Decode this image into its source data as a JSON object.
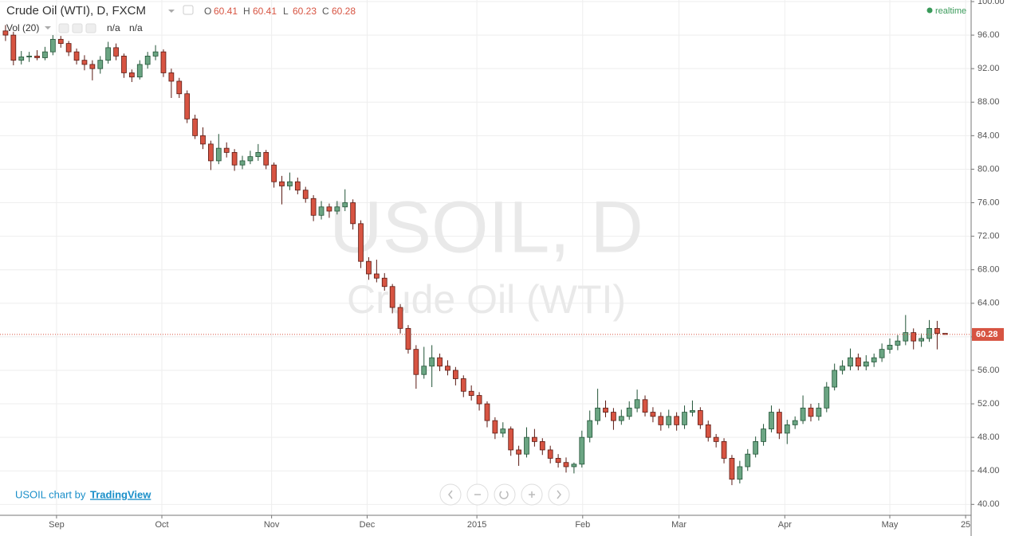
{
  "chart_data": {
    "type": "candlestick",
    "title": "Crude Oil (WTI), D, FXCM",
    "indicator": {
      "name": "Vol (20)",
      "values": [
        "n/a",
        "n/a"
      ]
    },
    "ohlc_labels": [
      "O",
      "H",
      "L",
      "C"
    ],
    "status": "realtime",
    "watermark": {
      "symbol": "USOIL, D",
      "name": "Crude Oil (WTI)"
    },
    "credit": {
      "text": "USOIL chart by",
      "link": "TradingView"
    },
    "up_color": "#6ba583",
    "down_color": "#d75442",
    "ylim": [
      38.7,
      100.19
    ],
    "yticks": [
      {
        "value": 40,
        "label": "40.00"
      },
      {
        "value": 44,
        "label": "44.00"
      },
      {
        "value": 48,
        "label": "48.00"
      },
      {
        "value": 52,
        "label": "52.00"
      },
      {
        "value": 56,
        "label": "56.00"
      },
      {
        "value": 60,
        "label": "60.00"
      },
      {
        "value": 64,
        "label": "64.00"
      },
      {
        "value": 68,
        "label": "68.00"
      },
      {
        "value": 72,
        "label": "72.00"
      },
      {
        "value": 76,
        "label": "76.00"
      },
      {
        "value": 80,
        "label": "80.00"
      },
      {
        "value": 84,
        "label": "84.00"
      },
      {
        "value": 88,
        "label": "88.00"
      },
      {
        "value": 92,
        "label": "92.00"
      },
      {
        "value": 96,
        "label": "96.00"
      },
      {
        "value": 100,
        "label": "100.00"
      }
    ],
    "xlim": [
      -0.7,
      122.3
    ],
    "xticks": [
      {
        "value": 6.46,
        "label": "Sep"
      },
      {
        "value": 19.8,
        "label": "Oct"
      },
      {
        "value": 33.7,
        "label": "Nov"
      },
      {
        "value": 45.8,
        "label": "Dec"
      },
      {
        "value": 59.7,
        "label": "2015"
      },
      {
        "value": 73.1,
        "label": "Feb"
      },
      {
        "value": 85.3,
        "label": "Mar"
      },
      {
        "value": 98.7,
        "label": "Apr"
      },
      {
        "value": 112,
        "label": "May"
      },
      {
        "value": 121.6,
        "label": "25"
      }
    ],
    "grid": true,
    "ohlc": [
      [
        96.5,
        97.2,
        95.3,
        96
      ],
      [
        96,
        96.4,
        92.4,
        93
      ],
      [
        93,
        94.1,
        92.5,
        93.4
      ],
      [
        93.4,
        94,
        92.8,
        93.5
      ],
      [
        93.5,
        94.2,
        93,
        93.3
      ],
      [
        93.3,
        94.6,
        93,
        94
      ],
      [
        94,
        96,
        93.6,
        95.5
      ],
      [
        95.5,
        95.9,
        94.5,
        95
      ],
      [
        95,
        95.3,
        93.5,
        94
      ],
      [
        94,
        94.4,
        92.5,
        93
      ],
      [
        93,
        93.6,
        91.8,
        92.5
      ],
      [
        92.5,
        93,
        90.6,
        92
      ],
      [
        92,
        93.5,
        91.4,
        93
      ],
      [
        93,
        95.2,
        92.6,
        94.5
      ],
      [
        94.5,
        95,
        93,
        93.5
      ],
      [
        93.5,
        93.8,
        90.9,
        91.5
      ],
      [
        91.5,
        91.9,
        90.4,
        91
      ],
      [
        91,
        93,
        90.7,
        92.5
      ],
      [
        92.5,
        94,
        92,
        93.5
      ],
      [
        93.5,
        94.8,
        93,
        94
      ],
      [
        94,
        94.3,
        91,
        91.5
      ],
      [
        91.5,
        92,
        88.5,
        90.5
      ],
      [
        90.5,
        90.9,
        88.5,
        89
      ],
      [
        89,
        89.4,
        85.5,
        86
      ],
      [
        86,
        86.5,
        83.6,
        84
      ],
      [
        84,
        85,
        82.4,
        83
      ],
      [
        83,
        83.4,
        79.9,
        81
      ],
      [
        81,
        84.2,
        80.6,
        82.5
      ],
      [
        82.5,
        83.2,
        81.4,
        82
      ],
      [
        82,
        82.4,
        79.8,
        80.5
      ],
      [
        80.5,
        81.6,
        80,
        81
      ],
      [
        81,
        82.2,
        80.6,
        81.5
      ],
      [
        81.5,
        83,
        81,
        82
      ],
      [
        82,
        82.3,
        80,
        80.5
      ],
      [
        80.5,
        80.8,
        77.8,
        78.5
      ],
      [
        78.5,
        79.2,
        75.8,
        78
      ],
      [
        78,
        79.6,
        77.5,
        78.5
      ],
      [
        78.5,
        79,
        77,
        77.5
      ],
      [
        77.5,
        77.9,
        76,
        76.5
      ],
      [
        76.5,
        76.9,
        73.8,
        74.5
      ],
      [
        74.5,
        76.2,
        74,
        75.5
      ],
      [
        75.5,
        75.9,
        74.2,
        75
      ],
      [
        75,
        76.2,
        74.6,
        75.5
      ],
      [
        75.5,
        77.6,
        75,
        76
      ],
      [
        76,
        76.4,
        72.8,
        73.5
      ],
      [
        73.5,
        73.9,
        68.2,
        69
      ],
      [
        69,
        69.5,
        66.8,
        67.5
      ],
      [
        67.5,
        69.2,
        66.5,
        67
      ],
      [
        67,
        67.6,
        65.5,
        66
      ],
      [
        66,
        66.3,
        62.8,
        63.5
      ],
      [
        63.5,
        63.9,
        60.4,
        61
      ],
      [
        61,
        61.4,
        58,
        58.5
      ],
      [
        58.5,
        59,
        53.8,
        55.5
      ],
      [
        55.5,
        58.8,
        55,
        56.5
      ],
      [
        56.5,
        59,
        54,
        57.5
      ],
      [
        57.5,
        58,
        55.9,
        56.5
      ],
      [
        56.5,
        57.2,
        55.4,
        56
      ],
      [
        56,
        56.4,
        54.2,
        55
      ],
      [
        55,
        55.4,
        52.8,
        53.5
      ],
      [
        53.5,
        54.2,
        52.4,
        53
      ],
      [
        53,
        53.4,
        51.2,
        52
      ],
      [
        52,
        52.3,
        49.2,
        50
      ],
      [
        50,
        50.4,
        47.8,
        48.5
      ],
      [
        48.5,
        49.8,
        48,
        49
      ],
      [
        49,
        49.3,
        45.8,
        46.5
      ],
      [
        46.5,
        47,
        44.6,
        46
      ],
      [
        46,
        49.2,
        45.6,
        48
      ],
      [
        48,
        49,
        46.9,
        47.5
      ],
      [
        47.5,
        47.9,
        45.9,
        46.5
      ],
      [
        46.5,
        47,
        44.9,
        45.5
      ],
      [
        45.5,
        46,
        44.4,
        45
      ],
      [
        45,
        45.6,
        43.8,
        44.5
      ],
      [
        44.5,
        45,
        43.7,
        44.8
      ],
      [
        44.8,
        48.8,
        44.4,
        48
      ],
      [
        48,
        51.2,
        47.4,
        50
      ],
      [
        50,
        53.8,
        49.5,
        51.5
      ],
      [
        51.5,
        52.4,
        50.4,
        51
      ],
      [
        51,
        51.5,
        48.9,
        50
      ],
      [
        50,
        51.3,
        49.5,
        50.5
      ],
      [
        50.5,
        52.3,
        50.1,
        51.5
      ],
      [
        51.5,
        53.7,
        51,
        52.5
      ],
      [
        52.5,
        53,
        50.5,
        51
      ],
      [
        51,
        51.6,
        49.8,
        50.5
      ],
      [
        50.5,
        51,
        48.8,
        49.5
      ],
      [
        49.5,
        51.3,
        49.1,
        50.5
      ],
      [
        50.5,
        51,
        48.8,
        49.5
      ],
      [
        49.5,
        51.8,
        49,
        51
      ],
      [
        51,
        52.4,
        50.5,
        51.2
      ],
      [
        51.2,
        51.6,
        49,
        49.5
      ],
      [
        49.5,
        50,
        47.5,
        48
      ],
      [
        48,
        48.4,
        46.8,
        47.5
      ],
      [
        47.5,
        47.9,
        44.9,
        45.5
      ],
      [
        45.5,
        45.9,
        42.3,
        43
      ],
      [
        43,
        45.2,
        42.5,
        44.5
      ],
      [
        44.5,
        46.6,
        44,
        46
      ],
      [
        46,
        48.1,
        45.6,
        47.5
      ],
      [
        47.5,
        49.6,
        47,
        49
      ],
      [
        49,
        51.8,
        48.6,
        51
      ],
      [
        51,
        51.4,
        47.8,
        48.5
      ],
      [
        48.5,
        50.1,
        47.2,
        49.5
      ],
      [
        49.5,
        50.5,
        49,
        50
      ],
      [
        50,
        53,
        49.6,
        51.5
      ],
      [
        51.5,
        52,
        49.9,
        50.5
      ],
      [
        50.5,
        52.1,
        50,
        51.5
      ],
      [
        51.5,
        54.6,
        51,
        54
      ],
      [
        54,
        56.8,
        53.6,
        56
      ],
      [
        56,
        57.2,
        55.5,
        56.5
      ],
      [
        56.5,
        58.6,
        56,
        57.5
      ],
      [
        57.5,
        58,
        56,
        56.5
      ],
      [
        56.5,
        57.8,
        56,
        57
      ],
      [
        57,
        58,
        56.4,
        57.5
      ],
      [
        57.5,
        59.2,
        57,
        58.5
      ],
      [
        58.5,
        59.8,
        58,
        59
      ],
      [
        59,
        60.2,
        58.4,
        59.5
      ],
      [
        59.5,
        62.6,
        59,
        60.5
      ],
      [
        60.5,
        61,
        58.5,
        59.5
      ],
      [
        59.5,
        60.4,
        58.8,
        59.8
      ],
      [
        59.8,
        62,
        59.4,
        61
      ],
      [
        61,
        61.9,
        58.5,
        60.4
      ],
      [
        60.41,
        60.41,
        60.23,
        60.28
      ]
    ]
  }
}
